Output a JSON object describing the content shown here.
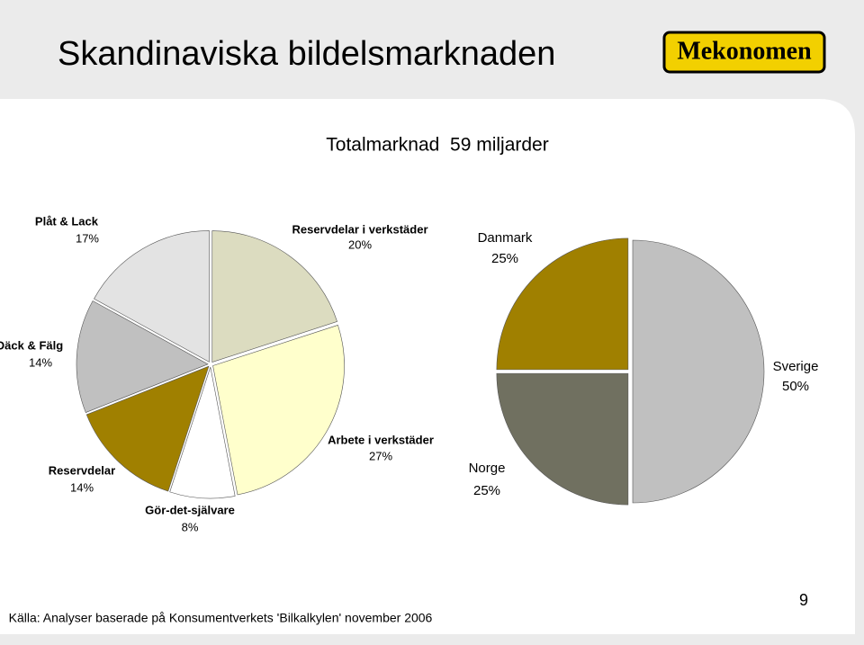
{
  "header": {
    "title": "Skandinaviska bildelsmarknaden",
    "logo": "Mekonomen"
  },
  "subtitle": "Totalmarknad  59 miljarder",
  "chart_data": [
    {
      "type": "pie",
      "categories": [
        "Reservdelar i verkstäder",
        "Arbete i verkstäder",
        "Gör-det-självare",
        "Reservdelar",
        "Däck & Fälg",
        "Plåt & Lack"
      ],
      "values": [
        20,
        27,
        8,
        14,
        14,
        17
      ],
      "value_labels": [
        "20%",
        "27%",
        "8%",
        "14%",
        "14%",
        "17%"
      ],
      "colors": [
        "#dcdcc0",
        "#ffffcc",
        "#ffffff",
        "#a08000",
        "#c0c0c0",
        "#e3e3e3"
      ]
    },
    {
      "type": "pie",
      "categories": [
        "Sverige",
        "Norge",
        "Danmark"
      ],
      "values": [
        50,
        25,
        25
      ],
      "value_labels": [
        "50%",
        "25%",
        "25%"
      ],
      "colors": [
        "#c0c0c0",
        "#707060",
        "#a08000"
      ]
    }
  ],
  "footer": {
    "source": "Källa: Analyser baserade på Konsumentverkets 'Bilkalkylen' november 2006",
    "page": "9"
  }
}
